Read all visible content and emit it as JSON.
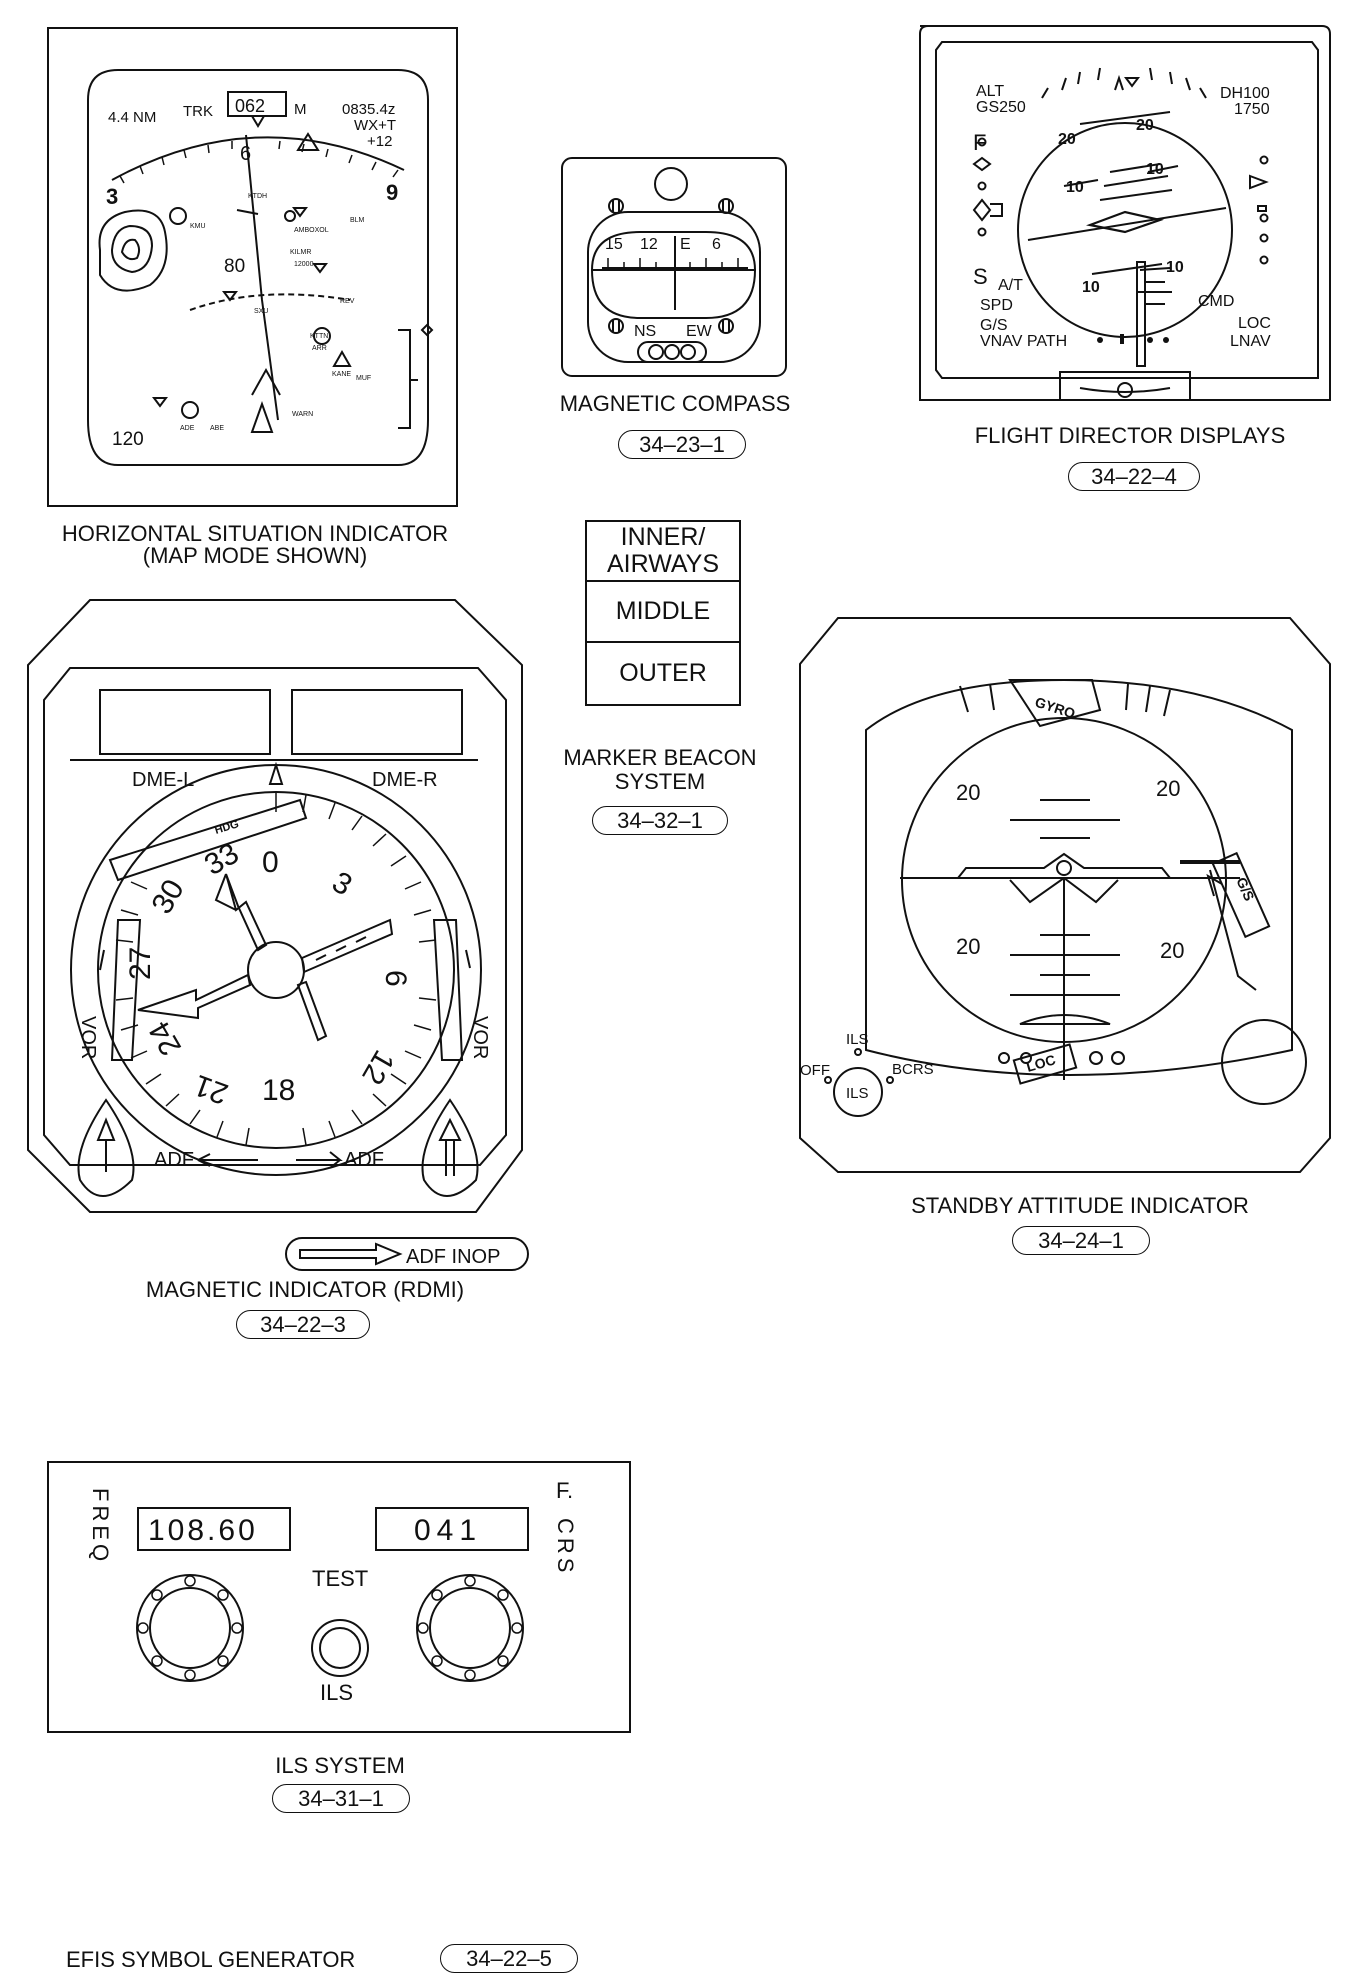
{
  "hsi": {
    "range": "4.4 NM",
    "trk": "TRK",
    "heading": "062",
    "mag": "M",
    "time": "0835.4z",
    "wx": "WX+T",
    "offset": "+12",
    "scale_3": "3",
    "scale_6": "6",
    "scale_9": "9",
    "range_mid": "80",
    "range_out": "120",
    "wpt_kmu": "KMU",
    "wpt_ktdh": "KTDH",
    "wpt_ambox": "AMBOXOL",
    "wpt_blm": "BLM",
    "wpt_kilmr": "KILMR",
    "wpt_12000": "12000",
    "wpt_rev": "REV",
    "wpt_sxu": "SXU",
    "wpt_kttn": "KTTN",
    "wpt_arr": "ARR",
    "wpt_kane": "KANE",
    "wpt_muf": "MUF",
    "wpt_ade": "ADE",
    "wpt_abe": "ABE",
    "wpt_warn": "WARN",
    "caption_1": "HORIZONTAL SITUATION INDICATOR",
    "caption_2": "(MAP MODE SHOWN)"
  },
  "compass": {
    "s15": "15",
    "s12": "12",
    "sE": "E",
    "s6": "6",
    "ns": "NS",
    "ew": "EW",
    "caption": "MAGNETIC COMPASS",
    "ref": "34–23–1"
  },
  "fdd": {
    "alt": "ALT",
    "gs": "GS250",
    "dh": "DH100",
    "dh_val": "1750",
    "f": "F",
    "s": "S",
    "at": "A/T",
    "spd": "SPD",
    "gs2": "G/S",
    "vnav": "VNAV PATH",
    "cmd": "CMD",
    "loc": "LOC",
    "lnav": "LNAV",
    "p20": "20",
    "p10": "10",
    "caption": "FLIGHT DIRECTOR DISPLAYS",
    "ref": "34–22–4"
  },
  "marker": {
    "inner": "INNER/\nAIRWAYS",
    "middle": "MIDDLE",
    "outer": "OUTER",
    "caption_1": "MARKER BEACON",
    "caption_2": "SYSTEM",
    "ref": "34–32–1"
  },
  "rdmi": {
    "dme_l": "DME-L",
    "dme_r": "DME-R",
    "hdg": "HDG",
    "vor_l": "VOR",
    "vor_r": "VOR",
    "adf_l": "ADF",
    "adf_r": "ADF",
    "n0": "0",
    "n3": "3",
    "n6": "6",
    "n12": "12",
    "n18": "18",
    "n21": "21",
    "n24": "24",
    "n27": "27",
    "n30": "30",
    "n33": "33",
    "inop": "ADF INOP",
    "caption": "MAGNETIC INDICATOR (RDMI)",
    "ref": "34–22–3"
  },
  "sai": {
    "gyro": "GYRO",
    "p20": "20",
    "gs": "G/S",
    "loc": "LOC",
    "ils_top": "ILS",
    "off": "OFF",
    "bcrs": "BCRS",
    "ils_knob": "ILS",
    "caption": "STANDBY ATTITUDE INDICATOR",
    "ref": "34–24–1"
  },
  "ils": {
    "freq_label": "FREQ",
    "freq": "108.60",
    "crs_label_1": "F.",
    "crs_label_2": "CRS",
    "crs": "041",
    "test": "TEST",
    "ils": "ILS",
    "caption": "ILS SYSTEM",
    "ref": "34–31–1"
  },
  "efis": {
    "caption": "EFIS SYMBOL GENERATOR",
    "ref": "34–22–5"
  }
}
